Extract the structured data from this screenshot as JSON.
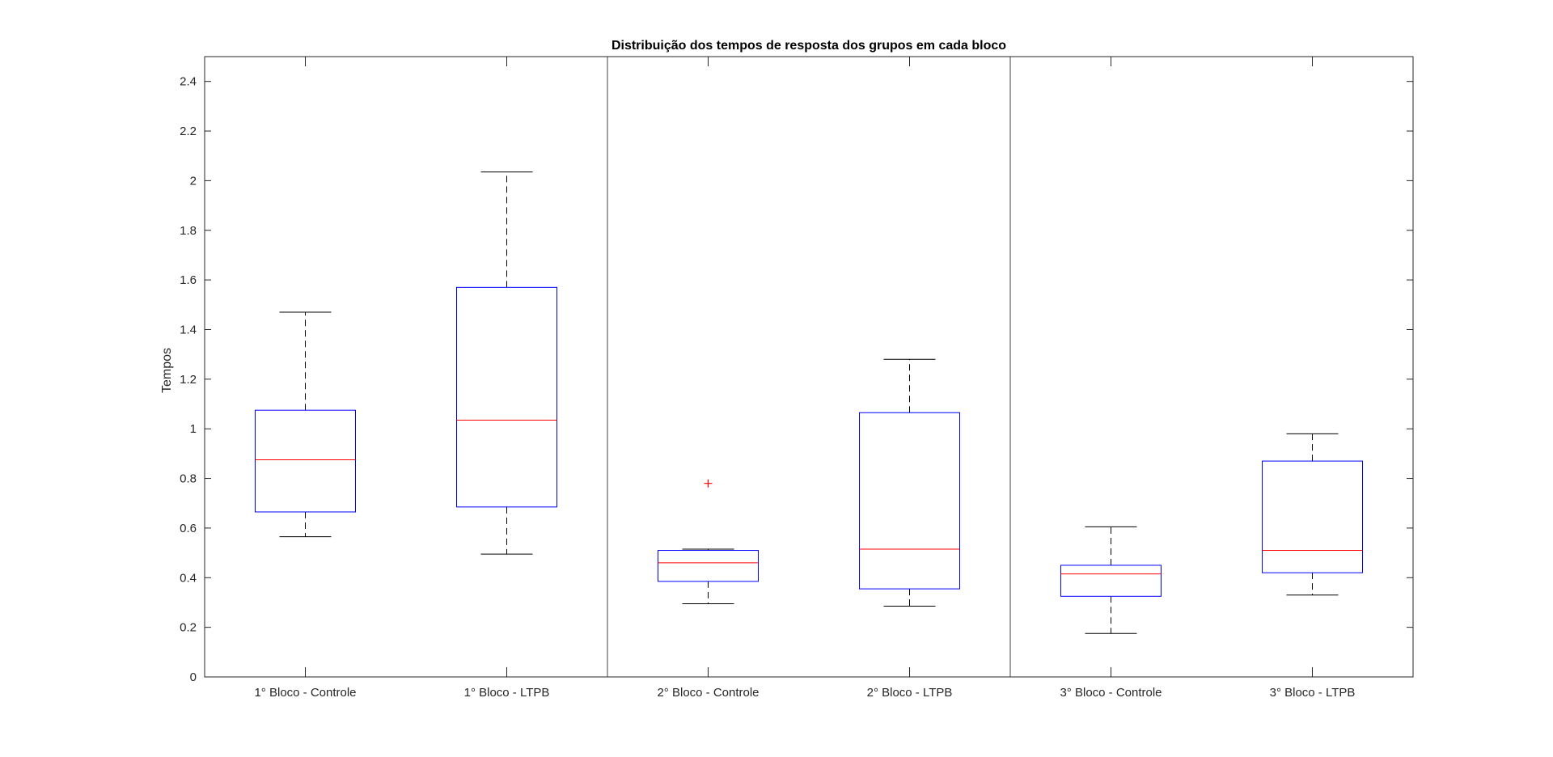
{
  "chart_data": {
    "type": "boxplot",
    "title": "Distribuição dos tempos de resposta dos grupos em cada bloco",
    "xlabel": "",
    "ylabel": "Tempos",
    "ylim": [
      0,
      2.5
    ],
    "yticks": [
      0,
      0.2,
      0.4,
      0.6,
      0.8,
      1,
      1.2,
      1.4,
      1.6,
      1.8,
      2,
      2.2,
      2.4
    ],
    "ytick_labels": [
      "0",
      "0.2",
      "0.4",
      "0.6",
      "0.8",
      "1",
      "1.2",
      "1.4",
      "1.6",
      "1.8",
      "2",
      "2.2",
      "2.4"
    ],
    "categories": [
      "1° Bloco - Controle",
      "1° Bloco - LTPB",
      "2° Bloco - Controle",
      "2° Bloco - LTPB",
      "3° Bloco - Controle",
      "3° Bloco - LTPB"
    ],
    "boxes": [
      {
        "lower_whisker": 0.565,
        "q1": 0.665,
        "median": 0.875,
        "q3": 1.075,
        "upper_whisker": 1.47,
        "outliers": []
      },
      {
        "lower_whisker": 0.495,
        "q1": 0.685,
        "median": 1.035,
        "q3": 1.57,
        "upper_whisker": 2.035,
        "outliers": []
      },
      {
        "lower_whisker": 0.295,
        "q1": 0.385,
        "median": 0.46,
        "q3": 0.51,
        "upper_whisker": 0.515,
        "outliers": [
          0.78
        ]
      },
      {
        "lower_whisker": 0.285,
        "q1": 0.355,
        "median": 0.515,
        "q3": 1.065,
        "upper_whisker": 1.28,
        "outliers": []
      },
      {
        "lower_whisker": 0.175,
        "q1": 0.325,
        "median": 0.415,
        "q3": 0.45,
        "upper_whisker": 0.605,
        "outliers": []
      },
      {
        "lower_whisker": 0.33,
        "q1": 0.42,
        "median": 0.51,
        "q3": 0.87,
        "upper_whisker": 0.98,
        "outliers": []
      }
    ],
    "separators_after_category": [
      2,
      4
    ],
    "grid": false,
    "colors": {
      "box": "#0000ff",
      "median": "#ff0000",
      "whisker": "#000000",
      "outlier": "#ff0000",
      "axis": "#262626"
    }
  }
}
